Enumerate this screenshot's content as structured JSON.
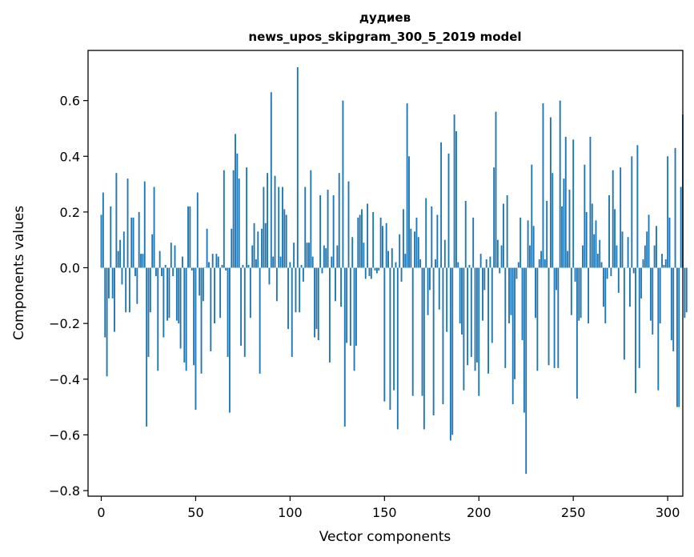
{
  "chart_data": {
    "type": "bar",
    "title": "дудиев",
    "subtitle": "news_upos_skipgram_300_5_2019 model",
    "xlabel": "Vector components",
    "ylabel": "Components values",
    "xlim": [
      -7,
      308
    ],
    "ylim": [
      -0.82,
      0.78
    ],
    "xticks": [
      0,
      50,
      100,
      150,
      200,
      250,
      300
    ],
    "yticks": [
      -0.8,
      -0.6,
      -0.4,
      -0.2,
      0.0,
      0.2,
      0.4,
      0.6
    ],
    "xtick_labels": [
      "0",
      "50",
      "100",
      "150",
      "200",
      "250",
      "300"
    ],
    "ytick_labels": [
      "−0.8",
      "−0.6",
      "−0.4",
      "−0.2",
      "0.0",
      "0.2",
      "0.4",
      "0.6"
    ],
    "bar_color": "#1f77b4",
    "values": [
      0.19,
      0.27,
      -0.25,
      -0.39,
      -0.11,
      0.22,
      -0.11,
      -0.23,
      0.34,
      0.06,
      0.1,
      -0.06,
      0.13,
      -0.16,
      0.32,
      -0.16,
      0.18,
      0.18,
      -0.03,
      -0.13,
      0.2,
      0.05,
      0.05,
      0.31,
      -0.57,
      -0.32,
      -0.16,
      0.12,
      0.29,
      -0.03,
      -0.37,
      0.06,
      -0.03,
      -0.25,
      0.01,
      -0.19,
      -0.18,
      0.09,
      -0.03,
      0.08,
      -0.19,
      -0.2,
      -0.29,
      0.04,
      -0.34,
      -0.37,
      0.22,
      0.22,
      -0.01,
      -0.35,
      -0.51,
      0.27,
      -0.1,
      -0.38,
      -0.12,
      0.0,
      0.14,
      0.02,
      -0.3,
      0.05,
      -0.2,
      0.05,
      0.04,
      -0.18,
      0.01,
      0.35,
      -0.01,
      -0.32,
      -0.52,
      0.14,
      0.35,
      0.48,
      0.41,
      0.32,
      -0.28,
      0.01,
      -0.32,
      0.36,
      0.01,
      -0.18,
      0.08,
      0.16,
      0.03,
      0.13,
      -0.38,
      0.14,
      0.29,
      0.16,
      0.34,
      -0.06,
      0.63,
      0.04,
      0.33,
      -0.12,
      0.29,
      0.04,
      0.29,
      0.21,
      0.19,
      -0.22,
      0.02,
      -0.32,
      0.09,
      -0.16,
      0.72,
      -0.16,
      0.01,
      -0.05,
      0.29,
      0.09,
      0.09,
      0.35,
      0.04,
      -0.25,
      -0.22,
      -0.26,
      0.26,
      -0.02,
      0.08,
      0.07,
      0.28,
      -0.34,
      0.04,
      0.26,
      -0.12,
      0.08,
      0.34,
      -0.14,
      0.6,
      -0.57,
      -0.27,
      0.31,
      -0.28,
      0.11,
      -0.37,
      -0.28,
      0.18,
      0.19,
      0.21,
      0.09,
      -0.04,
      0.23,
      -0.03,
      -0.04,
      0.2,
      -0.01,
      -0.02,
      -0.01,
      0.18,
      0.15,
      -0.48,
      0.16,
      0.06,
      -0.51,
      0.07,
      -0.44,
      0.02,
      -0.58,
      0.12,
      -0.05,
      0.21,
      0.05,
      0.59,
      0.4,
      0.14,
      -0.46,
      0.13,
      0.18,
      0.11,
      0.03,
      -0.46,
      -0.58,
      0.25,
      -0.17,
      -0.08,
      0.22,
      -0.53,
      0.03,
      0.19,
      -0.15,
      0.45,
      -0.49,
      0.1,
      -0.23,
      0.41,
      -0.62,
      -0.6,
      0.55,
      0.49,
      0.02,
      -0.2,
      -0.24,
      -0.44,
      0.24,
      -0.35,
      0.01,
      -0.32,
      0.18,
      -0.37,
      -0.34,
      -0.46,
      0.05,
      -0.19,
      -0.08,
      0.03,
      -0.38,
      0.04,
      -0.27,
      0.36,
      0.56,
      0.1,
      -0.02,
      0.08,
      0.23,
      -0.36,
      0.26,
      -0.2,
      -0.17,
      -0.49,
      -0.4,
      -0.04,
      0.02,
      0.18,
      -0.26,
      -0.52,
      -0.74,
      0.17,
      0.08,
      0.37,
      0.15,
      -0.18,
      -0.37,
      0.03,
      0.06,
      0.59,
      0.03,
      0.24,
      -0.35,
      0.54,
      0.34,
      -0.36,
      -0.08,
      -0.36,
      0.6,
      0.22,
      0.32,
      0.47,
      0.06,
      0.28,
      -0.17,
      0.46,
      -0.05,
      -0.47,
      -0.19,
      -0.18,
      0.08,
      0.37,
      0.2,
      -0.2,
      0.47,
      0.23,
      0.12,
      0.17,
      0.05,
      0.1,
      0.02,
      -0.14,
      -0.2,
      -0.04,
      0.26,
      -0.03,
      0.35,
      0.21,
      0.08,
      -0.09,
      0.36,
      0.13,
      -0.33,
      0.0,
      0.11,
      -0.14,
      0.4,
      -0.02,
      -0.45,
      0.44,
      -0.36,
      -0.11,
      0.03,
      0.08,
      0.13,
      0.19,
      -0.19,
      -0.24,
      0.08,
      0.15,
      -0.44,
      -0.2,
      0.05,
      0.01,
      0.03,
      0.4,
      0.18,
      -0.26,
      -0.3,
      0.43,
      -0.5,
      -0.5,
      0.29,
      0.55,
      -0.18,
      -0.16
    ]
  }
}
